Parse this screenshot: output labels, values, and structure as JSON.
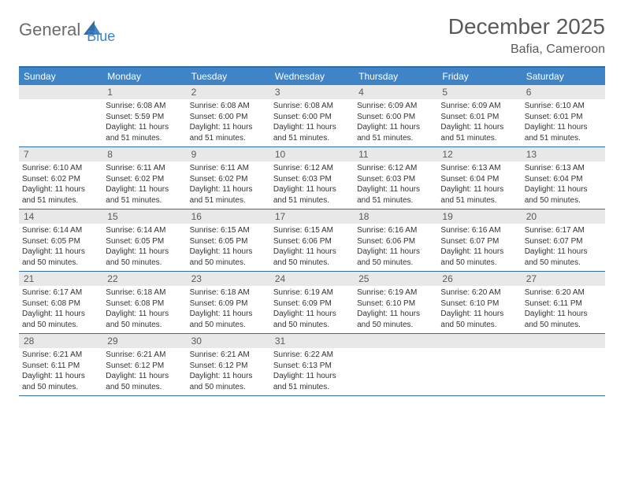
{
  "logo": {
    "text1": "General",
    "text2": "Blue"
  },
  "title": "December 2025",
  "subtitle": "Bafia, Cameroon",
  "colors": {
    "header_bg": "#3e84c6",
    "header_text": "#ffffff",
    "border": "#2f6da8",
    "daynum_bg": "#e8e8e8",
    "daynum_text": "#5a5a5a",
    "body_text": "#333333",
    "title_text": "#5a5a5a",
    "logo_gray": "#6b6b6b",
    "logo_blue": "#3e84c6",
    "page_bg": "#ffffff"
  },
  "typography": {
    "title_fontsize": 28,
    "subtitle_fontsize": 16,
    "weekday_fontsize": 12,
    "daynum_fontsize": 12,
    "body_fontsize": 10
  },
  "weekdays": [
    "Sunday",
    "Monday",
    "Tuesday",
    "Wednesday",
    "Thursday",
    "Friday",
    "Saturday"
  ],
  "weeks": [
    [
      {
        "num": "",
        "sunrise": "",
        "sunset": "",
        "daylight": ""
      },
      {
        "num": "1",
        "sunrise": "Sunrise: 6:08 AM",
        "sunset": "Sunset: 5:59 PM",
        "daylight": "Daylight: 11 hours and 51 minutes."
      },
      {
        "num": "2",
        "sunrise": "Sunrise: 6:08 AM",
        "sunset": "Sunset: 6:00 PM",
        "daylight": "Daylight: 11 hours and 51 minutes."
      },
      {
        "num": "3",
        "sunrise": "Sunrise: 6:08 AM",
        "sunset": "Sunset: 6:00 PM",
        "daylight": "Daylight: 11 hours and 51 minutes."
      },
      {
        "num": "4",
        "sunrise": "Sunrise: 6:09 AM",
        "sunset": "Sunset: 6:00 PM",
        "daylight": "Daylight: 11 hours and 51 minutes."
      },
      {
        "num": "5",
        "sunrise": "Sunrise: 6:09 AM",
        "sunset": "Sunset: 6:01 PM",
        "daylight": "Daylight: 11 hours and 51 minutes."
      },
      {
        "num": "6",
        "sunrise": "Sunrise: 6:10 AM",
        "sunset": "Sunset: 6:01 PM",
        "daylight": "Daylight: 11 hours and 51 minutes."
      }
    ],
    [
      {
        "num": "7",
        "sunrise": "Sunrise: 6:10 AM",
        "sunset": "Sunset: 6:02 PM",
        "daylight": "Daylight: 11 hours and 51 minutes."
      },
      {
        "num": "8",
        "sunrise": "Sunrise: 6:11 AM",
        "sunset": "Sunset: 6:02 PM",
        "daylight": "Daylight: 11 hours and 51 minutes."
      },
      {
        "num": "9",
        "sunrise": "Sunrise: 6:11 AM",
        "sunset": "Sunset: 6:02 PM",
        "daylight": "Daylight: 11 hours and 51 minutes."
      },
      {
        "num": "10",
        "sunrise": "Sunrise: 6:12 AM",
        "sunset": "Sunset: 6:03 PM",
        "daylight": "Daylight: 11 hours and 51 minutes."
      },
      {
        "num": "11",
        "sunrise": "Sunrise: 6:12 AM",
        "sunset": "Sunset: 6:03 PM",
        "daylight": "Daylight: 11 hours and 51 minutes."
      },
      {
        "num": "12",
        "sunrise": "Sunrise: 6:13 AM",
        "sunset": "Sunset: 6:04 PM",
        "daylight": "Daylight: 11 hours and 51 minutes."
      },
      {
        "num": "13",
        "sunrise": "Sunrise: 6:13 AM",
        "sunset": "Sunset: 6:04 PM",
        "daylight": "Daylight: 11 hours and 50 minutes."
      }
    ],
    [
      {
        "num": "14",
        "sunrise": "Sunrise: 6:14 AM",
        "sunset": "Sunset: 6:05 PM",
        "daylight": "Daylight: 11 hours and 50 minutes."
      },
      {
        "num": "15",
        "sunrise": "Sunrise: 6:14 AM",
        "sunset": "Sunset: 6:05 PM",
        "daylight": "Daylight: 11 hours and 50 minutes."
      },
      {
        "num": "16",
        "sunrise": "Sunrise: 6:15 AM",
        "sunset": "Sunset: 6:05 PM",
        "daylight": "Daylight: 11 hours and 50 minutes."
      },
      {
        "num": "17",
        "sunrise": "Sunrise: 6:15 AM",
        "sunset": "Sunset: 6:06 PM",
        "daylight": "Daylight: 11 hours and 50 minutes."
      },
      {
        "num": "18",
        "sunrise": "Sunrise: 6:16 AM",
        "sunset": "Sunset: 6:06 PM",
        "daylight": "Daylight: 11 hours and 50 minutes."
      },
      {
        "num": "19",
        "sunrise": "Sunrise: 6:16 AM",
        "sunset": "Sunset: 6:07 PM",
        "daylight": "Daylight: 11 hours and 50 minutes."
      },
      {
        "num": "20",
        "sunrise": "Sunrise: 6:17 AM",
        "sunset": "Sunset: 6:07 PM",
        "daylight": "Daylight: 11 hours and 50 minutes."
      }
    ],
    [
      {
        "num": "21",
        "sunrise": "Sunrise: 6:17 AM",
        "sunset": "Sunset: 6:08 PM",
        "daylight": "Daylight: 11 hours and 50 minutes."
      },
      {
        "num": "22",
        "sunrise": "Sunrise: 6:18 AM",
        "sunset": "Sunset: 6:08 PM",
        "daylight": "Daylight: 11 hours and 50 minutes."
      },
      {
        "num": "23",
        "sunrise": "Sunrise: 6:18 AM",
        "sunset": "Sunset: 6:09 PM",
        "daylight": "Daylight: 11 hours and 50 minutes."
      },
      {
        "num": "24",
        "sunrise": "Sunrise: 6:19 AM",
        "sunset": "Sunset: 6:09 PM",
        "daylight": "Daylight: 11 hours and 50 minutes."
      },
      {
        "num": "25",
        "sunrise": "Sunrise: 6:19 AM",
        "sunset": "Sunset: 6:10 PM",
        "daylight": "Daylight: 11 hours and 50 minutes."
      },
      {
        "num": "26",
        "sunrise": "Sunrise: 6:20 AM",
        "sunset": "Sunset: 6:10 PM",
        "daylight": "Daylight: 11 hours and 50 minutes."
      },
      {
        "num": "27",
        "sunrise": "Sunrise: 6:20 AM",
        "sunset": "Sunset: 6:11 PM",
        "daylight": "Daylight: 11 hours and 50 minutes."
      }
    ],
    [
      {
        "num": "28",
        "sunrise": "Sunrise: 6:21 AM",
        "sunset": "Sunset: 6:11 PM",
        "daylight": "Daylight: 11 hours and 50 minutes."
      },
      {
        "num": "29",
        "sunrise": "Sunrise: 6:21 AM",
        "sunset": "Sunset: 6:12 PM",
        "daylight": "Daylight: 11 hours and 50 minutes."
      },
      {
        "num": "30",
        "sunrise": "Sunrise: 6:21 AM",
        "sunset": "Sunset: 6:12 PM",
        "daylight": "Daylight: 11 hours and 50 minutes."
      },
      {
        "num": "31",
        "sunrise": "Sunrise: 6:22 AM",
        "sunset": "Sunset: 6:13 PM",
        "daylight": "Daylight: 11 hours and 51 minutes."
      },
      {
        "num": "",
        "sunrise": "",
        "sunset": "",
        "daylight": ""
      },
      {
        "num": "",
        "sunrise": "",
        "sunset": "",
        "daylight": ""
      },
      {
        "num": "",
        "sunrise": "",
        "sunset": "",
        "daylight": ""
      }
    ]
  ]
}
